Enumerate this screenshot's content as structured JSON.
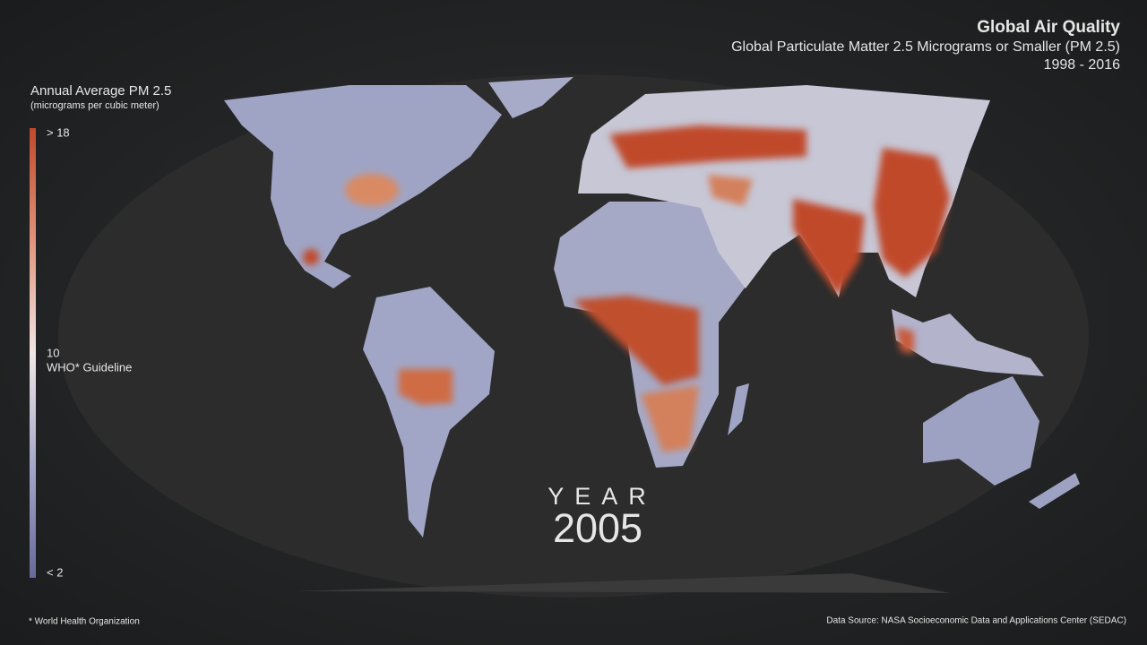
{
  "header": {
    "title": "Global Air Quality",
    "subtitle": "Global Particulate Matter 2.5 Micrograms or Smaller  (PM 2.5)",
    "years": "1998 - 2016"
  },
  "legend": {
    "title": "Annual Average PM 2.5",
    "unit": "(micrograms per cubic meter)",
    "labels": [
      "> 18",
      "10",
      "WHO* Guideline",
      "< 2"
    ]
  },
  "year": {
    "label": "YEAR",
    "value": "2005"
  },
  "footer": {
    "note": "* World Health Organization",
    "source": "Data Source:  NASA Socioeconomic Data and Applications Center (SEDAC)"
  }
}
